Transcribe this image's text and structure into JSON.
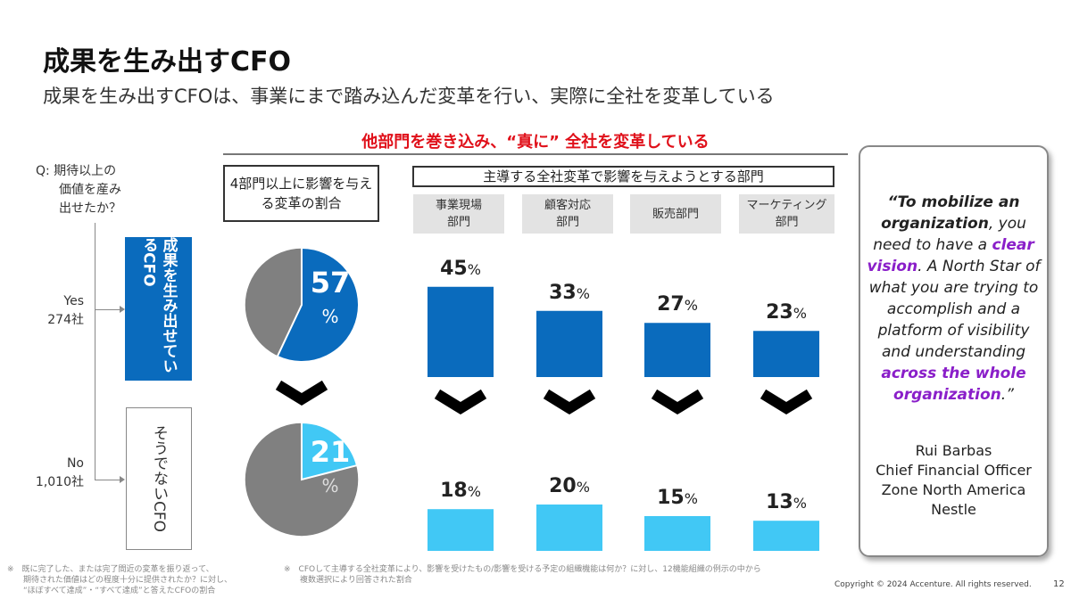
{
  "title": "成果を生み出すCFO",
  "subtitle": "成果を生み出すCFOは、事業にまで踏み込んだ変革を行い、実際に全社を変革している",
  "banner": "他部門を巻き込み、“真に” 全社を変革している",
  "question": {
    "line1": "Q: 期待以上の",
    "line2": "価値を産み",
    "line3": "出せたか？"
  },
  "yes": {
    "label": "Yes",
    "count": "274社",
    "box": "成果を生み出せているCFO"
  },
  "no": {
    "label": "No",
    "count": "1,010社",
    "box": "そうでないCFO"
  },
  "pie_title": "4部門以上に影響を与える変革の割合",
  "bar_title": "主導する全社変革で影響を与えようとする部門",
  "colors": {
    "dark_blue": "#0a6bbd",
    "light_blue": "#41c8f5",
    "gray": "#808080",
    "accent_red": "#e0101a",
    "purple": "#8a1fc9"
  },
  "chart_data": [
    {
      "type": "pie",
      "group": "成果を生み出せているCFO",
      "values": [
        57,
        43
      ],
      "label": "57",
      "unit": "%"
    },
    {
      "type": "pie",
      "group": "そうでないCFO",
      "values": [
        21,
        79
      ],
      "label": "21",
      "unit": "%"
    },
    {
      "type": "bar",
      "title": "主導する全社変革で影響を与えようとする部門",
      "categories": [
        "事業現場部門",
        "顧客対応部門",
        "販売部門",
        "マーケティング部門"
      ],
      "series": [
        {
          "group": "成果を生み出せているCFO",
          "values": [
            45,
            33,
            27,
            23
          ]
        },
        {
          "group": "そうでないCFO",
          "values": [
            18,
            20,
            15,
            13
          ]
        }
      ],
      "unit": "%"
    }
  ],
  "categories_display": [
    "事業現場\n部門",
    "顧客対応\n部門",
    "販売部門",
    "マーケティング\n部門"
  ],
  "quote": {
    "p1": "“To mobilize an ",
    "p2": "organization",
    "p3": ", you need to have a ",
    "p4": "clear vision",
    "p5": ". A North Star of what you are trying to accomplish and a platform of visibility and understanding ",
    "p6": "across the whole organization",
    "p7": ".”",
    "author": "Rui Barbas",
    "role": "Chief Financial Officer",
    "region": "Zone North America",
    "company": "Nestle"
  },
  "footnote1": "※　既に完了した、または完了間近の変革を振り返って、\n　　期待された価値はどの程度十分に提供されたか？に対し、\n　　“ほぼすべて達成”・“すべて達成”と答えたCFOの割合",
  "footnote2": "※　CFOして主導する全社変革により、影響を受けたもの/影響を受ける予定の組織機能は何か？に対し、12機能組織の例示の中から\n　　複数選択により回答された割合",
  "copyright": "Copyright © 2024 Accenture. All rights reserved.",
  "page": "12"
}
